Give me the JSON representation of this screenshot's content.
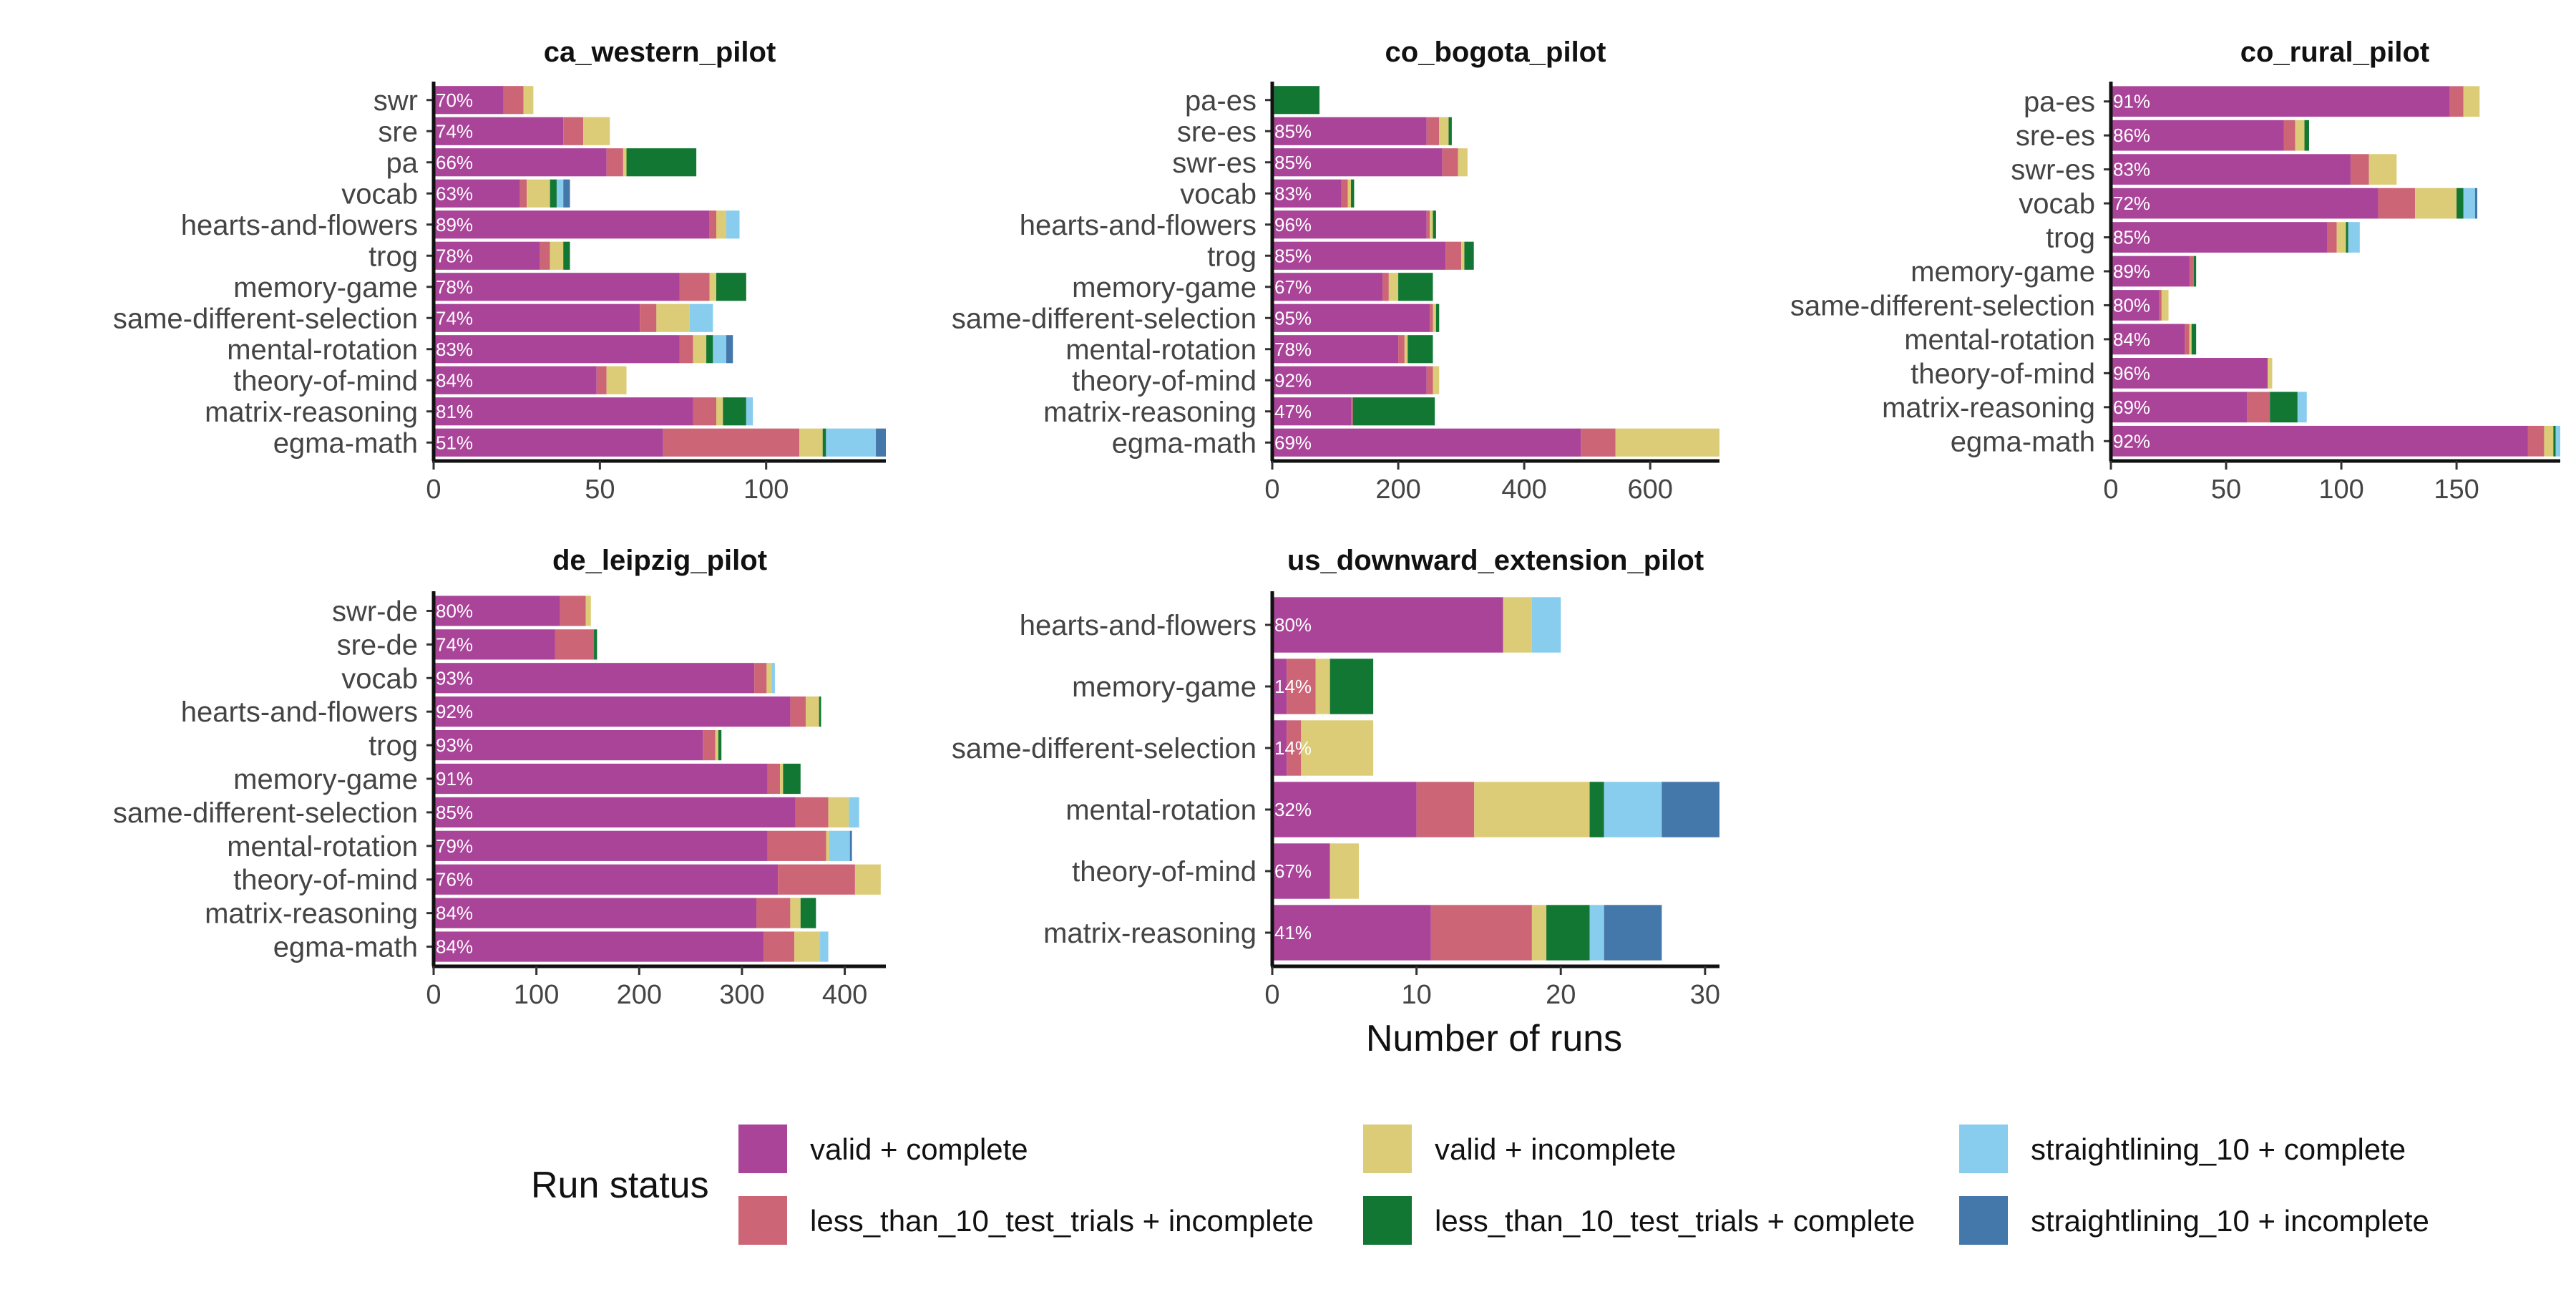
{
  "figure": {
    "x_axis_title": "Number of runs",
    "legend_title": "Run status"
  },
  "statuses": [
    {
      "key": "vc",
      "label": "valid + complete",
      "color": "#AA4499"
    },
    {
      "key": "l10i",
      "label": "less_than_10_test_trials + incomplete",
      "color": "#CC6677"
    },
    {
      "key": "vi",
      "label": "valid + incomplete",
      "color": "#DDCC77"
    },
    {
      "key": "l10c",
      "label": "less_than_10_test_trials + complete",
      "color": "#117733"
    },
    {
      "key": "s10c",
      "label": "straightlining_10 + complete",
      "color": "#88CCEE"
    },
    {
      "key": "s10i",
      "label": "straightlining_10 + incomplete",
      "color": "#4477AA"
    }
  ],
  "chart_data": [
    {
      "type": "bar",
      "orientation": "horizontal",
      "stacked": true,
      "title": "ca_western_pilot",
      "xlim": [
        0,
        136
      ],
      "xticks": [
        0,
        50,
        100
      ],
      "categories": [
        "swr",
        "sre",
        "pa",
        "vocab",
        "hearts-and-flowers",
        "trog",
        "memory-game",
        "same-different-selection",
        "mental-rotation",
        "theory-of-mind",
        "matrix-reasoning",
        "egma-math"
      ],
      "percent_labels": [
        "70%",
        "74%",
        "66%",
        "63%",
        "89%",
        "78%",
        "78%",
        "74%",
        "83%",
        "84%",
        "81%",
        "51%"
      ],
      "series": [
        {
          "key": "vc",
          "values": [
            21,
            39,
            52,
            26,
            83,
            32,
            74,
            62,
            74,
            49,
            78,
            69
          ]
        },
        {
          "key": "l10i",
          "values": [
            6,
            6,
            5,
            2,
            2,
            3,
            9,
            5,
            4,
            3,
            7,
            41
          ]
        },
        {
          "key": "vi",
          "values": [
            3,
            8,
            1,
            7,
            3,
            4,
            2,
            10,
            4,
            6,
            2,
            7
          ]
        },
        {
          "key": "l10c",
          "values": [
            0,
            0,
            21,
            2,
            0,
            2,
            9,
            0,
            2,
            0,
            7,
            1
          ]
        },
        {
          "key": "s10c",
          "values": [
            0,
            0,
            0,
            2,
            4,
            0,
            0,
            7,
            4,
            0,
            2,
            15
          ]
        },
        {
          "key": "s10i",
          "values": [
            0,
            0,
            0,
            2,
            0,
            0,
            0,
            0,
            2,
            0,
            0,
            3
          ]
        }
      ]
    },
    {
      "type": "bar",
      "orientation": "horizontal",
      "stacked": true,
      "title": "co_bogota_pilot",
      "xlim": [
        0,
        710
      ],
      "xticks": [
        0,
        200,
        400,
        600
      ],
      "categories": [
        "pa-es",
        "sre-es",
        "swr-es",
        "vocab",
        "hearts-and-flowers",
        "trog",
        "memory-game",
        "same-different-selection",
        "mental-rotation",
        "theory-of-mind",
        "matrix-reasoning",
        "egma-math"
      ],
      "percent_labels": [
        "",
        "85%",
        "85%",
        "83%",
        "96%",
        "85%",
        "67%",
        "95%",
        "78%",
        "92%",
        "47%",
        "69%"
      ],
      "series": [
        {
          "key": "vc",
          "values": [
            3,
            245,
            270,
            110,
            245,
            275,
            175,
            250,
            200,
            245,
            125,
            490
          ]
        },
        {
          "key": "l10i",
          "values": [
            0,
            20,
            25,
            10,
            5,
            25,
            10,
            5,
            10,
            10,
            3,
            55
          ]
        },
        {
          "key": "vi",
          "values": [
            0,
            15,
            15,
            5,
            5,
            5,
            15,
            5,
            5,
            10,
            0,
            165
          ]
        },
        {
          "key": "l10c",
          "values": [
            72,
            5,
            0,
            5,
            5,
            15,
            55,
            5,
            40,
            0,
            130,
            0
          ]
        },
        {
          "key": "s10c",
          "values": [
            0,
            0,
            0,
            0,
            0,
            0,
            0,
            0,
            0,
            0,
            0,
            0
          ]
        },
        {
          "key": "s10i",
          "values": [
            0,
            0,
            0,
            0,
            0,
            0,
            0,
            0,
            0,
            0,
            0,
            0
          ]
        }
      ]
    },
    {
      "type": "bar",
      "orientation": "horizontal",
      "stacked": true,
      "title": "co_rural_pilot",
      "xlim": [
        0,
        195
      ],
      "xticks": [
        0,
        50,
        100,
        150
      ],
      "categories": [
        "pa-es",
        "sre-es",
        "swr-es",
        "vocab",
        "trog",
        "memory-game",
        "same-different-selection",
        "mental-rotation",
        "theory-of-mind",
        "matrix-reasoning",
        "egma-math"
      ],
      "percent_labels": [
        "91%",
        "86%",
        "83%",
        "72%",
        "85%",
        "89%",
        "80%",
        "84%",
        "96%",
        "69%",
        "92%"
      ],
      "series": [
        {
          "key": "vc",
          "values": [
            147,
            75,
            104,
            116,
            94,
            34,
            21,
            32,
            68,
            59,
            181
          ]
        },
        {
          "key": "l10i",
          "values": [
            6,
            5,
            8,
            16,
            4,
            2,
            1,
            2,
            0,
            10,
            7
          ]
        },
        {
          "key": "vi",
          "values": [
            7,
            4,
            12,
            18,
            4,
            0,
            3,
            1,
            2,
            0,
            4
          ]
        },
        {
          "key": "l10c",
          "values": [
            0,
            2,
            0,
            3,
            1,
            1,
            0,
            2,
            0,
            12,
            1
          ]
        },
        {
          "key": "s10c",
          "values": [
            0,
            0,
            0,
            5,
            5,
            0,
            0,
            0,
            0,
            4,
            2
          ]
        },
        {
          "key": "s10i",
          "values": [
            0,
            0,
            0,
            1,
            0,
            0,
            0,
            0,
            0,
            0,
            0
          ]
        }
      ]
    },
    {
      "type": "bar",
      "orientation": "horizontal",
      "stacked": true,
      "title": "de_leipzig_pilot",
      "xlim": [
        0,
        440
      ],
      "xticks": [
        0,
        100,
        200,
        300,
        400
      ],
      "categories": [
        "swr-de",
        "sre-de",
        "vocab",
        "hearts-and-flowers",
        "trog",
        "memory-game",
        "same-different-selection",
        "mental-rotation",
        "theory-of-mind",
        "matrix-reasoning",
        "egma-math"
      ],
      "percent_labels": [
        "80%",
        "74%",
        "93%",
        "92%",
        "93%",
        "91%",
        "85%",
        "79%",
        "76%",
        "84%",
        "84%"
      ],
      "series": [
        {
          "key": "vc",
          "values": [
            123,
            118,
            312,
            347,
            262,
            325,
            352,
            325,
            335,
            314,
            321
          ]
        },
        {
          "key": "l10i",
          "values": [
            25,
            38,
            12,
            15,
            12,
            12,
            32,
            57,
            75,
            33,
            30
          ]
        },
        {
          "key": "vi",
          "values": [
            5,
            0,
            5,
            13,
            3,
            3,
            20,
            3,
            25,
            10,
            25
          ]
        },
        {
          "key": "l10c",
          "values": [
            0,
            3,
            0,
            2,
            3,
            17,
            0,
            0,
            0,
            15,
            0
          ]
        },
        {
          "key": "s10c",
          "values": [
            0,
            0,
            3,
            0,
            0,
            0,
            10,
            20,
            0,
            0,
            8
          ]
        },
        {
          "key": "s10i",
          "values": [
            0,
            0,
            0,
            0,
            0,
            0,
            0,
            2,
            0,
            0,
            0
          ]
        }
      ]
    },
    {
      "type": "bar",
      "orientation": "horizontal",
      "stacked": true,
      "title": "us_downward_extension_pilot",
      "xlim": [
        0,
        31
      ],
      "xticks": [
        0,
        10,
        20,
        30
      ],
      "categories": [
        "hearts-and-flowers",
        "memory-game",
        "same-different-selection",
        "mental-rotation",
        "theory-of-mind",
        "matrix-reasoning"
      ],
      "percent_labels": [
        "80%",
        "14%",
        "14%",
        "32%",
        "67%",
        "41%"
      ],
      "series": [
        {
          "key": "vc",
          "values": [
            16,
            1,
            1,
            10,
            4,
            11
          ]
        },
        {
          "key": "l10i",
          "values": [
            0,
            2,
            1,
            4,
            0,
            7
          ]
        },
        {
          "key": "vi",
          "values": [
            2,
            1,
            5,
            8,
            2,
            1
          ]
        },
        {
          "key": "l10c",
          "values": [
            0,
            3,
            0,
            1,
            0,
            3
          ]
        },
        {
          "key": "s10c",
          "values": [
            2,
            0,
            0,
            4,
            0,
            1
          ]
        },
        {
          "key": "s10i",
          "values": [
            0,
            0,
            0,
            4,
            0,
            4
          ]
        }
      ]
    }
  ]
}
